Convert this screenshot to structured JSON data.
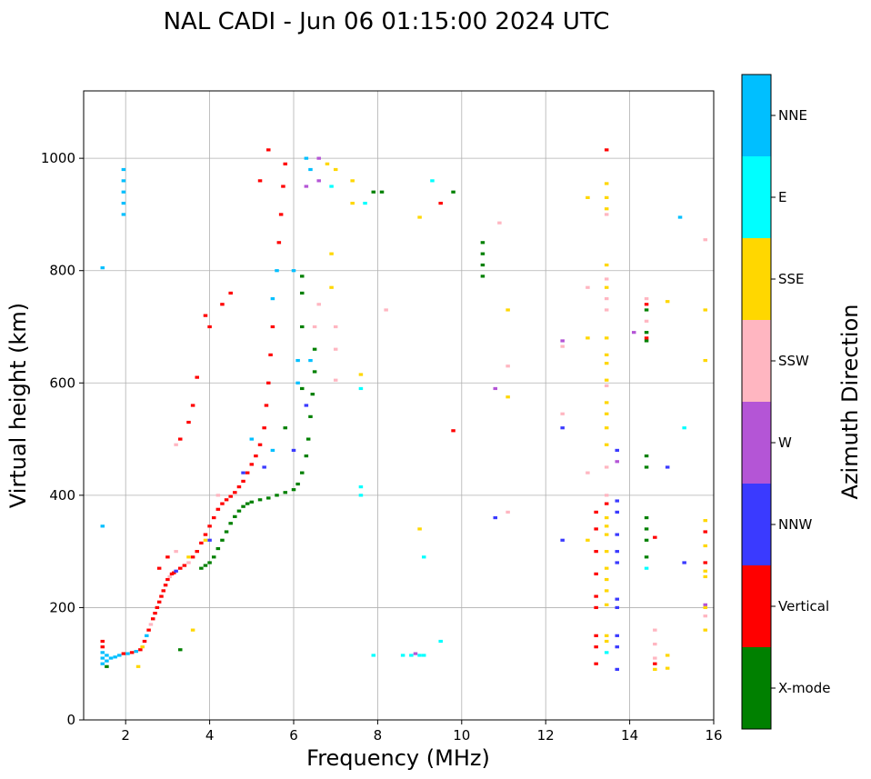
{
  "chart_data": {
    "type": "scatter",
    "title": "NAL CADI - Jun 06 01:15:00 2024 UTC",
    "xlabel": "Frequency (MHz)",
    "ylabel": "Virtual height (km)",
    "xlim": [
      1,
      16
    ],
    "ylim": [
      0,
      1120
    ],
    "xticks": [
      2,
      4,
      6,
      8,
      10,
      12,
      14,
      16
    ],
    "xtick_labels": [
      "2",
      "4",
      "6",
      "8",
      "10",
      "12",
      "14",
      "16"
    ],
    "yticks": [
      0,
      200,
      400,
      600,
      800,
      1000
    ],
    "ytick_labels": [
      "0",
      "200",
      "400",
      "600",
      "800",
      "1000"
    ],
    "grid": true,
    "colorbar": {
      "label": "Azimuth Direction",
      "categories": [
        "X-mode",
        "Vertical",
        "NNW",
        "W",
        "SSW",
        "SSE",
        "E",
        "NNE"
      ],
      "colors": [
        "#008000",
        "#ff0000",
        "#3a3aff",
        "#b455d6",
        "#ffb6c1",
        "#ffd700",
        "#00ffff",
        "#00bfff"
      ]
    },
    "echoes_note": "Each point: [frequency MHz, virtual height km, direction index into colorbar.categories]",
    "points": [
      [
        1.45,
        100,
        7
      ],
      [
        1.45,
        110,
        7
      ],
      [
        1.45,
        120,
        7
      ],
      [
        1.45,
        130,
        1
      ],
      [
        1.45,
        140,
        1
      ],
      [
        1.55,
        95,
        0
      ],
      [
        1.55,
        105,
        7
      ],
      [
        1.55,
        115,
        7
      ],
      [
        1.65,
        110,
        7
      ],
      [
        1.75,
        112,
        7
      ],
      [
        1.85,
        115,
        7
      ],
      [
        1.95,
        118,
        1
      ],
      [
        2.05,
        118,
        7
      ],
      [
        2.15,
        120,
        1
      ],
      [
        2.25,
        122,
        7
      ],
      [
        2.35,
        125,
        1
      ],
      [
        2.4,
        130,
        5
      ],
      [
        2.45,
        140,
        1
      ],
      [
        2.5,
        150,
        7
      ],
      [
        2.55,
        160,
        1
      ],
      [
        2.6,
        170,
        4
      ],
      [
        2.65,
        180,
        1
      ],
      [
        2.7,
        190,
        1
      ],
      [
        2.75,
        200,
        1
      ],
      [
        2.8,
        210,
        1
      ],
      [
        2.85,
        220,
        1
      ],
      [
        2.9,
        230,
        1
      ],
      [
        2.95,
        240,
        1
      ],
      [
        3.0,
        250,
        1
      ],
      [
        3.05,
        255,
        4
      ],
      [
        3.1,
        260,
        1
      ],
      [
        3.15,
        262,
        1
      ],
      [
        3.2,
        265,
        2
      ],
      [
        3.3,
        270,
        1
      ],
      [
        3.4,
        275,
        1
      ],
      [
        3.5,
        280,
        4
      ],
      [
        3.6,
        290,
        1
      ],
      [
        3.7,
        300,
        1
      ],
      [
        3.8,
        315,
        1
      ],
      [
        3.9,
        330,
        1
      ],
      [
        4.0,
        345,
        1
      ],
      [
        4.1,
        360,
        1
      ],
      [
        4.2,
        375,
        1
      ],
      [
        4.3,
        385,
        1
      ],
      [
        4.4,
        392,
        1
      ],
      [
        4.5,
        398,
        1
      ],
      [
        4.6,
        405,
        1
      ],
      [
        4.7,
        415,
        1
      ],
      [
        4.8,
        425,
        1
      ],
      [
        4.9,
        440,
        1
      ],
      [
        5.0,
        455,
        1
      ],
      [
        5.1,
        470,
        1
      ],
      [
        5.2,
        490,
        1
      ],
      [
        5.3,
        520,
        1
      ],
      [
        5.35,
        560,
        1
      ],
      [
        5.4,
        600,
        1
      ],
      [
        5.45,
        650,
        1
      ],
      [
        5.5,
        700,
        1
      ],
      [
        5.5,
        750,
        7
      ],
      [
        5.6,
        800,
        7
      ],
      [
        5.65,
        850,
        1
      ],
      [
        5.7,
        900,
        1
      ],
      [
        5.75,
        950,
        1
      ],
      [
        5.8,
        990,
        1
      ],
      [
        3.8,
        270,
        0
      ],
      [
        3.9,
        275,
        0
      ],
      [
        4.0,
        280,
        0
      ],
      [
        4.1,
        290,
        0
      ],
      [
        4.2,
        305,
        0
      ],
      [
        4.3,
        320,
        0
      ],
      [
        4.4,
        335,
        0
      ],
      [
        4.5,
        350,
        0
      ],
      [
        4.6,
        362,
        0
      ],
      [
        4.7,
        372,
        0
      ],
      [
        4.8,
        380,
        0
      ],
      [
        4.9,
        385,
        0
      ],
      [
        5.0,
        388,
        0
      ],
      [
        5.2,
        392,
        0
      ],
      [
        5.4,
        395,
        0
      ],
      [
        5.6,
        400,
        0
      ],
      [
        5.8,
        405,
        0
      ],
      [
        6.0,
        410,
        0
      ],
      [
        6.1,
        420,
        0
      ],
      [
        6.2,
        440,
        0
      ],
      [
        6.3,
        470,
        0
      ],
      [
        6.35,
        500,
        0
      ],
      [
        6.4,
        540,
        0
      ],
      [
        6.45,
        580,
        0
      ],
      [
        6.5,
        620,
        0
      ],
      [
        6.5,
        660,
        0
      ],
      [
        6.2,
        700,
        0
      ],
      [
        6.2,
        760,
        0
      ],
      [
        6.2,
        790,
        0
      ],
      [
        6.1,
        640,
        7
      ],
      [
        6.2,
        590,
        0
      ],
      [
        6.3,
        560,
        2
      ],
      [
        6.4,
        640,
        7
      ],
      [
        6.5,
        700,
        4
      ],
      [
        6.6,
        740,
        4
      ],
      [
        6.6,
        1000,
        3
      ],
      [
        6.6,
        960,
        3
      ],
      [
        6.4,
        980,
        7
      ],
      [
        6.3,
        950,
        3
      ],
      [
        4.8,
        440,
        2
      ],
      [
        5.0,
        500,
        7
      ],
      [
        5.3,
        450,
        2
      ],
      [
        5.5,
        480,
        7
      ],
      [
        5.8,
        520,
        0
      ],
      [
        6.0,
        480,
        2
      ],
      [
        6.1,
        600,
        7
      ],
      [
        6.0,
        800,
        7
      ],
      [
        4.0,
        320,
        2
      ],
      [
        4.2,
        400,
        4
      ],
      [
        3.5,
        290,
        5
      ],
      [
        3.9,
        320,
        5
      ],
      [
        3.2,
        300,
        4
      ],
      [
        2.8,
        270,
        1
      ],
      [
        3.0,
        290,
        1
      ],
      [
        3.9,
        720,
        1
      ],
      [
        4.0,
        700,
        1
      ],
      [
        3.7,
        610,
        1
      ],
      [
        3.6,
        560,
        1
      ],
      [
        3.5,
        530,
        1
      ],
      [
        3.3,
        500,
        1
      ],
      [
        3.2,
        490,
        4
      ],
      [
        4.5,
        760,
        1
      ],
      [
        4.3,
        740,
        1
      ],
      [
        3.3,
        125,
        0
      ],
      [
        3.6,
        160,
        5
      ],
      [
        2.3,
        95,
        5
      ],
      [
        1.45,
        345,
        7
      ],
      [
        1.45,
        805,
        7
      ],
      [
        1.95,
        900,
        7
      ],
      [
        1.95,
        920,
        7
      ],
      [
        1.95,
        940,
        7
      ],
      [
        1.95,
        960,
        7
      ],
      [
        1.95,
        980,
        7
      ],
      [
        5.4,
        1015,
        1
      ],
      [
        5.2,
        960,
        1
      ],
      [
        6.3,
        1000,
        7
      ],
      [
        6.8,
        990,
        5
      ],
      [
        7.0,
        980,
        5
      ],
      [
        7.4,
        960,
        5
      ],
      [
        7.7,
        920,
        6
      ],
      [
        7.9,
        940,
        0
      ],
      [
        6.9,
        830,
        5
      ],
      [
        6.9,
        770,
        5
      ],
      [
        7.6,
        615,
        5
      ],
      [
        7.6,
        590,
        6
      ],
      [
        7.6,
        415,
        6
      ],
      [
        7.6,
        400,
        6
      ],
      [
        7.0,
        700,
        4
      ],
      [
        7.0,
        660,
        4
      ],
      [
        7.0,
        605,
        4
      ],
      [
        6.9,
        950,
        6
      ],
      [
        7.4,
        920,
        5
      ],
      [
        8.2,
        730,
        4
      ],
      [
        8.1,
        940,
        0
      ],
      [
        7.9,
        115,
        6
      ],
      [
        8.6,
        115,
        6
      ],
      [
        8.8,
        115,
        6
      ],
      [
        8.9,
        118,
        3
      ],
      [
        9.0,
        115,
        6
      ],
      [
        9.1,
        115,
        6
      ],
      [
        9.5,
        140,
        6
      ],
      [
        9.0,
        340,
        5
      ],
      [
        9.1,
        290,
        6
      ],
      [
        9.0,
        895,
        5
      ],
      [
        9.3,
        960,
        6
      ],
      [
        9.5,
        920,
        1
      ],
      [
        9.8,
        515,
        1
      ],
      [
        9.8,
        940,
        0
      ],
      [
        10.5,
        850,
        0
      ],
      [
        10.5,
        830,
        0
      ],
      [
        10.5,
        810,
        0
      ],
      [
        10.5,
        790,
        0
      ],
      [
        10.8,
        590,
        3
      ],
      [
        10.8,
        360,
        2
      ],
      [
        10.9,
        885,
        4
      ],
      [
        11.1,
        730,
        5
      ],
      [
        11.1,
        630,
        4
      ],
      [
        11.1,
        575,
        5
      ],
      [
        11.1,
        370,
        4
      ],
      [
        12.4,
        675,
        3
      ],
      [
        12.4,
        665,
        4
      ],
      [
        12.4,
        545,
        4
      ],
      [
        12.4,
        520,
        2
      ],
      [
        12.4,
        320,
        2
      ],
      [
        13.0,
        930,
        5
      ],
      [
        13.0,
        770,
        4
      ],
      [
        13.0,
        680,
        5
      ],
      [
        13.0,
        440,
        4
      ],
      [
        13.0,
        320,
        5
      ],
      [
        13.2,
        370,
        1
      ],
      [
        13.2,
        340,
        1
      ],
      [
        13.2,
        300,
        1
      ],
      [
        13.2,
        260,
        1
      ],
      [
        13.2,
        220,
        1
      ],
      [
        13.2,
        200,
        1
      ],
      [
        13.2,
        150,
        1
      ],
      [
        13.2,
        130,
        1
      ],
      [
        13.2,
        100,
        1
      ],
      [
        13.45,
        1015,
        1
      ],
      [
        13.45,
        955,
        5
      ],
      [
        13.45,
        930,
        5
      ],
      [
        13.45,
        910,
        5
      ],
      [
        13.45,
        900,
        4
      ],
      [
        13.45,
        810,
        5
      ],
      [
        13.45,
        785,
        4
      ],
      [
        13.45,
        770,
        5
      ],
      [
        13.45,
        750,
        4
      ],
      [
        13.45,
        730,
        4
      ],
      [
        13.45,
        680,
        5
      ],
      [
        13.45,
        650,
        5
      ],
      [
        13.45,
        635,
        5
      ],
      [
        13.45,
        605,
        5
      ],
      [
        13.45,
        595,
        4
      ],
      [
        13.45,
        565,
        5
      ],
      [
        13.45,
        545,
        5
      ],
      [
        13.45,
        520,
        5
      ],
      [
        13.45,
        490,
        5
      ],
      [
        13.45,
        450,
        4
      ],
      [
        13.45,
        400,
        4
      ],
      [
        13.45,
        385,
        1
      ],
      [
        13.45,
        360,
        5
      ],
      [
        13.45,
        345,
        5
      ],
      [
        13.45,
        330,
        5
      ],
      [
        13.45,
        300,
        5
      ],
      [
        13.45,
        270,
        5
      ],
      [
        13.45,
        250,
        5
      ],
      [
        13.45,
        230,
        5
      ],
      [
        13.45,
        205,
        5
      ],
      [
        13.45,
        150,
        5
      ],
      [
        13.45,
        140,
        5
      ],
      [
        13.45,
        120,
        6
      ],
      [
        13.7,
        480,
        2
      ],
      [
        13.7,
        460,
        3
      ],
      [
        13.7,
        390,
        2
      ],
      [
        13.7,
        370,
        2
      ],
      [
        13.7,
        330,
        2
      ],
      [
        13.7,
        300,
        2
      ],
      [
        13.7,
        280,
        2
      ],
      [
        13.7,
        215,
        2
      ],
      [
        13.7,
        200,
        2
      ],
      [
        13.7,
        150,
        2
      ],
      [
        13.7,
        130,
        2
      ],
      [
        13.7,
        90,
        2
      ],
      [
        14.1,
        690,
        3
      ],
      [
        14.4,
        750,
        4
      ],
      [
        14.4,
        730,
        0
      ],
      [
        14.4,
        710,
        4
      ],
      [
        14.4,
        690,
        0
      ],
      [
        14.4,
        675,
        0
      ],
      [
        14.4,
        470,
        0
      ],
      [
        14.4,
        450,
        0
      ],
      [
        14.4,
        360,
        0
      ],
      [
        14.4,
        340,
        0
      ],
      [
        14.4,
        320,
        0
      ],
      [
        14.4,
        290,
        0
      ],
      [
        14.4,
        270,
        6
      ],
      [
        14.4,
        740,
        1
      ],
      [
        14.4,
        680,
        1
      ],
      [
        14.6,
        325,
        1
      ],
      [
        14.6,
        160,
        4
      ],
      [
        14.6,
        135,
        4
      ],
      [
        14.6,
        110,
        4
      ],
      [
        14.6,
        100,
        1
      ],
      [
        14.6,
        90,
        5
      ],
      [
        14.9,
        745,
        5
      ],
      [
        14.9,
        450,
        2
      ],
      [
        14.9,
        115,
        5
      ],
      [
        14.9,
        92,
        5
      ],
      [
        15.2,
        895,
        7
      ],
      [
        15.3,
        520,
        6
      ],
      [
        15.3,
        280,
        2
      ],
      [
        15.8,
        855,
        4
      ],
      [
        15.8,
        730,
        5
      ],
      [
        15.8,
        640,
        5
      ],
      [
        15.8,
        355,
        5
      ],
      [
        15.8,
        335,
        1
      ],
      [
        15.8,
        310,
        5
      ],
      [
        15.8,
        280,
        1
      ],
      [
        15.8,
        265,
        5
      ],
      [
        15.8,
        255,
        5
      ],
      [
        15.8,
        205,
        3
      ],
      [
        15.8,
        200,
        5
      ],
      [
        15.8,
        185,
        4
      ],
      [
        15.8,
        160,
        5
      ]
    ]
  }
}
